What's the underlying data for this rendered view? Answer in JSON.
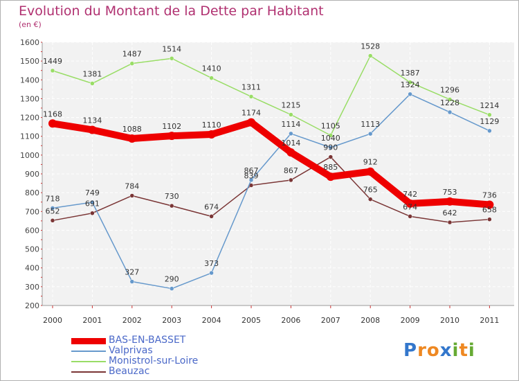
{
  "chart_data": {
    "type": "line",
    "title": "Evolution du Montant de la Dette par Habitant",
    "subtitle": "(en €)",
    "x": [
      "2000",
      "2001",
      "2002",
      "2003",
      "2004",
      "2005",
      "2006",
      "2007",
      "2008",
      "2009",
      "2010",
      "2011"
    ],
    "ylim": [
      200,
      1600
    ],
    "yticks": [
      200,
      300,
      400,
      500,
      600,
      700,
      800,
      900,
      1000,
      1100,
      1200,
      1300,
      1400,
      1500,
      1600
    ],
    "grid": true,
    "legend_position": "bottom-left",
    "series": [
      {
        "name": "BAS-EN-BASSET",
        "color": "#ee0000",
        "values": [
          1168,
          1134,
          1088,
          1102,
          1110,
          1174,
          1014,
          885,
          912,
          742,
          753,
          736
        ]
      },
      {
        "name": "Valprivas",
        "color": "#6699cc",
        "values": [
          718,
          749,
          327,
          290,
          373,
          867,
          1114,
          1040,
          1113,
          1324,
          1228,
          1129
        ]
      },
      {
        "name": "Monistrol-sur-Loire",
        "color": "#99dd66",
        "values": [
          1449,
          1381,
          1487,
          1514,
          1410,
          1311,
          1215,
          1105,
          1528,
          1387,
          1296,
          1214
        ]
      },
      {
        "name": "Beauzac",
        "color": "#7a3535",
        "values": [
          652,
          691,
          784,
          730,
          674,
          839,
          867,
          990,
          765,
          674,
          642,
          658
        ]
      }
    ]
  },
  "logo": {
    "letters": [
      "P",
      "r",
      "o",
      "x",
      "i",
      "t",
      "i"
    ],
    "colors": [
      "#3377cc",
      "#ee8822",
      "#ee8822",
      "#3377cc",
      "#66aa33",
      "#ee8822",
      "#66aa33"
    ]
  }
}
